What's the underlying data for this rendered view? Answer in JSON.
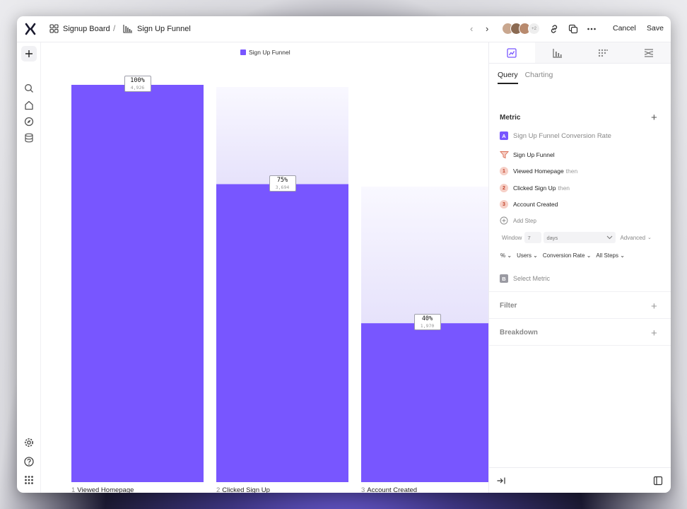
{
  "breadcrumb": {
    "board": "Signup Board",
    "separator": "/",
    "report": "Sign Up Funnel"
  },
  "header": {
    "avatar_more": "+2",
    "cancel": "Cancel",
    "save": "Save"
  },
  "legend": {
    "label": "Sign Up Funnel"
  },
  "colors": {
    "accent": "#7856ff",
    "ghost": "#ece9fb"
  },
  "chart_data": {
    "type": "bar",
    "categories": [
      "Viewed Homepage",
      "Clicked Sign Up",
      "Account Created"
    ],
    "step_numbers": [
      "1",
      "2",
      "3"
    ],
    "series": [
      {
        "name": "Sign Up Funnel",
        "values": [
          100,
          75,
          40
        ],
        "counts": [
          "4,926",
          "3,694",
          "1,970"
        ]
      }
    ],
    "percent_labels": [
      "100%",
      "75%",
      "40%"
    ],
    "ylim": [
      0,
      100
    ],
    "grid": false,
    "legend_position": "top-center"
  },
  "panel": {
    "tabs": [
      "metrics-tab",
      "chart-type-tab",
      "dots-tab",
      "flows-tab"
    ],
    "subtabs": [
      "Query",
      "Charting"
    ],
    "metric": {
      "title": "Metric",
      "a_badge": "A",
      "a_label": "Sign Up Funnel Conversion Rate",
      "funnel_name": "Sign Up Funnel",
      "steps": [
        {
          "num": "1",
          "label": "Viewed Homepage",
          "suffix": "then"
        },
        {
          "num": "2",
          "label": "Clicked Sign Up",
          "suffix": "then"
        },
        {
          "num": "3",
          "label": "Account Created",
          "suffix": ""
        }
      ],
      "add_step": "Add Step",
      "window_label": "Window",
      "window_value": "7",
      "window_unit": "days",
      "advanced": "Advanced",
      "dropdowns": [
        "%",
        "Users",
        "Conversion Rate",
        "All Steps"
      ],
      "b_badge": "B",
      "b_label": "Select Metric"
    },
    "filter": "Filter",
    "breakdown": "Breakdown"
  }
}
